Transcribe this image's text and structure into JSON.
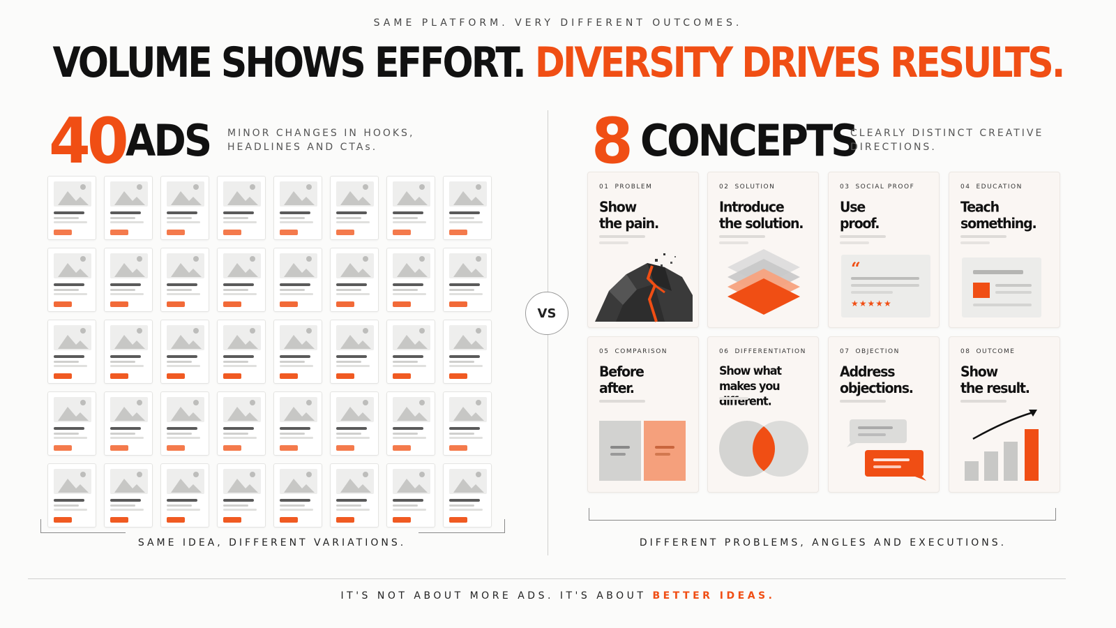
{
  "kicker": "SAME PLATFORM. VERY DIFFERENT OUTCOMES.",
  "headline": {
    "part1": "VOLUME SHOWS EFFORT.",
    "part2": "DIVERSITY DRIVES RESULTS."
  },
  "left": {
    "number": "40",
    "word": "ADS",
    "note_line1": "MINOR CHANGES IN HOOKS,",
    "note_line2": "HEADLINES AND CTAs.",
    "caption": "SAME IDEA, DIFFERENT VARIATIONS.",
    "ad_count": 40
  },
  "vs_label": "VS",
  "right": {
    "number": "8",
    "word": "CONCEPTS",
    "note_line1": "CLEARLY DISTINCT CREATIVE",
    "note_line2": "DIRECTIONS.",
    "caption": "DIFFERENT PROBLEMS, ANGLES AND EXECUTIONS.",
    "concepts": [
      {
        "num": "01",
        "tag": "PROBLEM",
        "title": "Show\nthe pain.",
        "icon": "volcano-icon"
      },
      {
        "num": "02",
        "tag": "SOLUTION",
        "title": "Introduce\nthe solution.",
        "icon": "layers-icon"
      },
      {
        "num": "03",
        "tag": "SOCIAL PROOF",
        "title": "Use\nproof.",
        "icon": "testimonial-icon",
        "stars": "★★★★★"
      },
      {
        "num": "04",
        "tag": "EDUCATION",
        "title": "Teach\nsomething.",
        "icon": "lesson-card-icon"
      },
      {
        "num": "05",
        "tag": "COMPARISON",
        "title": "Before\nafter.",
        "icon": "before-after-icon"
      },
      {
        "num": "06",
        "tag": "DIFFERENTIATION",
        "title": "Show what\nmakes you different.",
        "icon": "venn-icon"
      },
      {
        "num": "07",
        "tag": "OBJECTION",
        "title": "Address\nobjections.",
        "icon": "chat-bubbles-icon"
      },
      {
        "num": "08",
        "tag": "OUTCOME",
        "title": "Show\nthe result.",
        "icon": "growth-chart-icon"
      }
    ]
  },
  "footer": {
    "text": "IT'S NOT ABOUT MORE ADS. IT'S ABOUT",
    "accent": "BETTER IDEAS."
  },
  "colors": {
    "accent": "#f04e14",
    "dark": "#111111",
    "muted": "#555555"
  }
}
